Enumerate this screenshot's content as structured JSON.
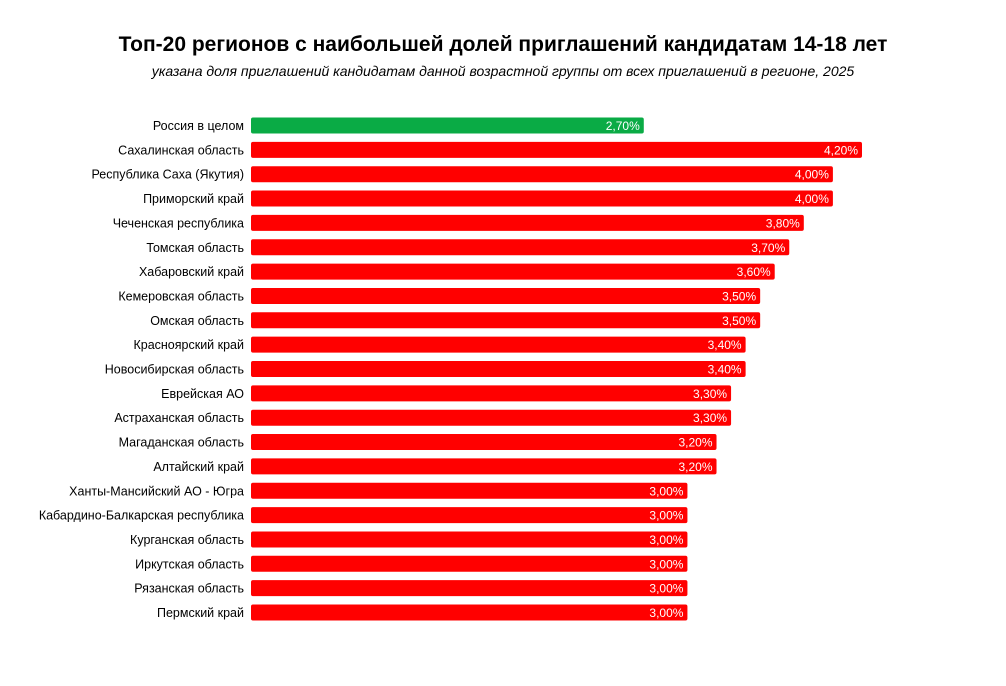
{
  "chart_data": {
    "type": "bar",
    "orientation": "horizontal",
    "title": "Топ-20 регионов с наибольшей долей приглашений кандидатам 14-18 лет",
    "subtitle": "указана доля приглашений кандидатам данной возрастной группы от всех приглашений в регионе, 2025",
    "categories": [
      "Россия в целом",
      "Сахалинская область",
      "Республика Саха (Якутия)",
      "Приморский край",
      "Чеченская республика",
      "Томская область",
      "Хабаровский край",
      "Кемеровская область",
      "Омская область",
      "Красноярский край",
      "Новосибирская область",
      "Еврейская АО",
      "Астраханская область",
      "Магаданская область",
      "Алтайский край",
      "Ханты-Мансийский АО - Югра",
      "Кабардино-Балкарская республика",
      "Курганская область",
      "Иркутская область",
      "Рязанская область",
      "Пермский край"
    ],
    "values": [
      2.7,
      4.2,
      4.0,
      4.0,
      3.8,
      3.7,
      3.6,
      3.5,
      3.5,
      3.4,
      3.4,
      3.3,
      3.3,
      3.2,
      3.2,
      3.0,
      3.0,
      3.0,
      3.0,
      3.0,
      3.0
    ],
    "value_labels": [
      "2,70%",
      "4,20%",
      "4,00%",
      "4,00%",
      "3,80%",
      "3,70%",
      "3,60%",
      "3,50%",
      "3,50%",
      "3,40%",
      "3,40%",
      "3,30%",
      "3,30%",
      "3,20%",
      "3,20%",
      "3,00%",
      "3,00%",
      "3,00%",
      "3,00%",
      "3,00%",
      "3,00%"
    ],
    "unit": "%",
    "xlim": [
      0,
      4.2
    ],
    "grid": false,
    "axes_visible": false,
    "colors": {
      "highlight": "#0aab45",
      "bar": "#ff0000",
      "value_text": "#ffffff"
    },
    "highlight_index": 0
  }
}
